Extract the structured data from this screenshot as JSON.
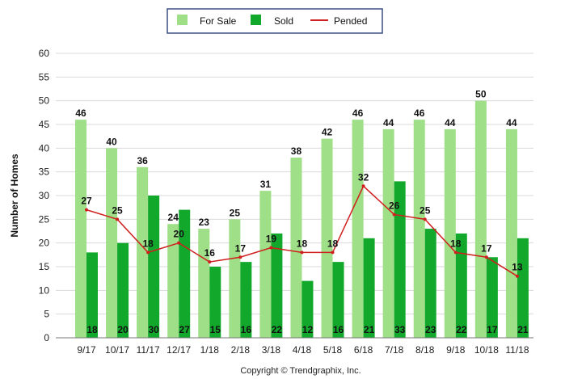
{
  "colors": {
    "for_sale": "#9edf87",
    "sold": "#12a82c",
    "pended": "#d01f1f",
    "grid": "#d9d9d9",
    "legend_border": "#3b4e86"
  },
  "chart_data": {
    "type": "bar",
    "title": "",
    "xlabel": "",
    "ylabel": "Number of Homes",
    "ylim": [
      0,
      60
    ],
    "yticks": [
      0,
      5,
      10,
      15,
      20,
      25,
      30,
      35,
      40,
      45,
      50,
      55,
      60
    ],
    "grid": true,
    "legend": "top-center",
    "categories": [
      "9/17",
      "10/17",
      "11/17",
      "12/17",
      "1/18",
      "2/18",
      "3/18",
      "4/18",
      "5/18",
      "6/18",
      "7/18",
      "8/18",
      "9/18",
      "10/18",
      "11/18"
    ],
    "series": [
      {
        "name": "For Sale",
        "type": "bar",
        "values": [
          46,
          40,
          36,
          24,
          23,
          25,
          31,
          38,
          42,
          46,
          44,
          46,
          44,
          50,
          44
        ]
      },
      {
        "name": "Sold",
        "type": "bar",
        "values": [
          18,
          20,
          30,
          27,
          15,
          16,
          22,
          12,
          16,
          21,
          33,
          23,
          22,
          17,
          21
        ]
      },
      {
        "name": "Pended",
        "type": "line",
        "values": [
          27,
          25,
          18,
          20,
          16,
          17,
          19,
          18,
          18,
          32,
          26,
          25,
          18,
          17,
          13
        ]
      }
    ]
  },
  "copyright": "Copyright © Trendgraphix, Inc."
}
